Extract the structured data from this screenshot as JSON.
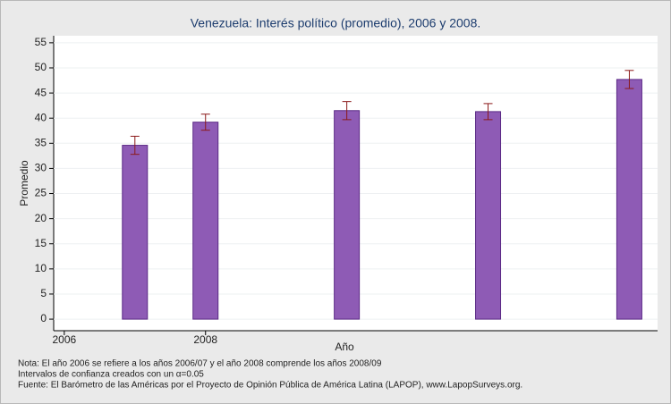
{
  "chart_data": {
    "type": "bar",
    "title": "Venezuela: Interés político (promedio), 2006 y 2008.",
    "xlabel": "Año",
    "ylabel": "Promedio",
    "x": [
      2007,
      2008,
      2010,
      2012,
      2014
    ],
    "values": [
      34.6,
      39.2,
      41.5,
      41.3,
      47.7
    ],
    "errors": [
      1.8,
      1.6,
      1.8,
      1.6,
      1.8
    ],
    "color": "#8e5bb5",
    "error_color": "#8b1a1a",
    "xlim": [
      2005.85,
      2014.4
    ],
    "xticks": [
      2006,
      2008
    ],
    "ylim": [
      -2.3,
      56.4
    ],
    "yticks": [
      0,
      5,
      10,
      15,
      20,
      25,
      30,
      35,
      40,
      45,
      50,
      55
    ],
    "grid": true,
    "notes": [
      "Nota: El año 2006 se refiere a los años 2006/07 y el año 2008 comprende los años 2008/09",
      "Intervalos de confianza creados con un α=0.05",
      "Fuente: El Barómetro de las Américas por el Proyecto de Opinión Pública de América Latina (LAPOP), www.LapopSurveys.org."
    ]
  }
}
